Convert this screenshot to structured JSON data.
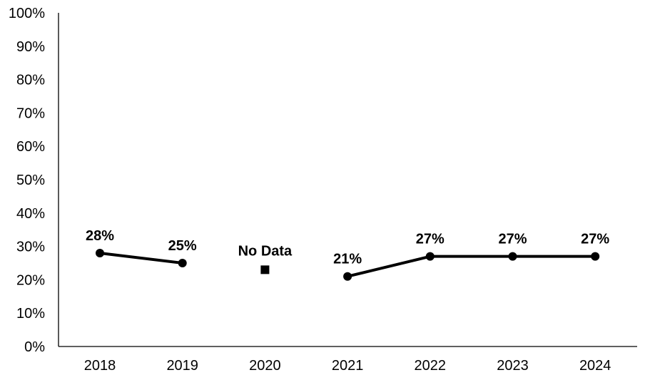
{
  "chart_data": {
    "type": "line",
    "categories": [
      "2018",
      "2019",
      "2020",
      "2021",
      "2022",
      "2023",
      "2024"
    ],
    "values": [
      28,
      25,
      null,
      21,
      27,
      27,
      27
    ],
    "value_labels": [
      "28%",
      "25%",
      null,
      "21%",
      "27%",
      "27%",
      "27%"
    ],
    "ylim": [
      0,
      100
    ],
    "y_ticks": [
      "0%",
      "10%",
      "20%",
      "30%",
      "40%",
      "50%",
      "60%",
      "70%",
      "80%",
      "90%",
      "100%"
    ],
    "grid": false,
    "annotation": {
      "text": "No Data",
      "category": "2020",
      "marker": "square",
      "value": 23
    },
    "colors": {
      "line": "#000000",
      "axis": "#000000"
    }
  }
}
